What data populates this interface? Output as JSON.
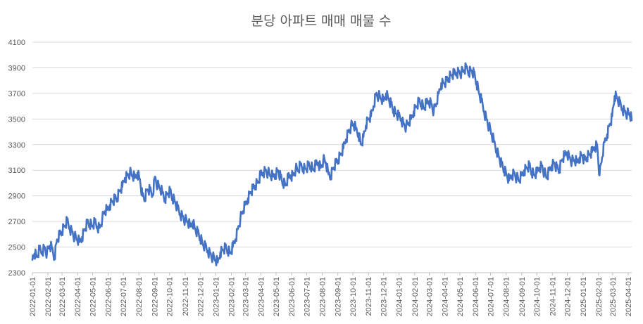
{
  "chart_data": {
    "type": "line",
    "title": "분당 아파트 매매 매물 수",
    "xlabel": "",
    "ylabel": "",
    "ylim": [
      2300,
      4100
    ],
    "yticks": [
      2300,
      2500,
      2700,
      2900,
      3100,
      3300,
      3500,
      3700,
      3900,
      4100
    ],
    "x_range": [
      "2022-01-01",
      "2025-04-08"
    ],
    "x_ticks": [
      "2022-01-01",
      "2022-02-01",
      "2022-03-01",
      "2022-04-01",
      "2022-05-01",
      "2022-06-01",
      "2022-07-01",
      "2022-08-01",
      "2022-09-01",
      "2022-10-01",
      "2022-11-01",
      "2022-12-01",
      "2023-01-01",
      "2023-02-01",
      "2023-03-01",
      "2023-04-01",
      "2023-05-01",
      "2023-06-01",
      "2023-07-01",
      "2023-08-01",
      "2023-09-01",
      "2023-10-01",
      "2023-11-01",
      "2023-12-01",
      "2024-01-01",
      "2024-02-01",
      "2024-03-01",
      "2024-04-01",
      "2024-05-01",
      "2024-06-01",
      "2024-07-01",
      "2024-08-01",
      "2024-09-01",
      "2024-10-01",
      "2024-11-01",
      "2024-12-01",
      "2025-01-01",
      "2025-02-01",
      "2025-03-01",
      "2025-04-01"
    ],
    "grid": true,
    "legend": "none",
    "series": [
      {
        "color": "#4472c4",
        "points": [
          [
            "2022-01-01",
            2400
          ],
          [
            "2022-01-05",
            2450
          ],
          [
            "2022-01-10",
            2420
          ],
          [
            "2022-01-15",
            2480
          ],
          [
            "2022-01-20",
            2460
          ],
          [
            "2022-01-25",
            2500
          ],
          [
            "2022-01-30",
            2450
          ],
          [
            "2022-02-04",
            2510
          ],
          [
            "2022-02-09",
            2490
          ],
          [
            "2022-02-14",
            2420
          ],
          [
            "2022-02-19",
            2560
          ],
          [
            "2022-02-24",
            2600
          ],
          [
            "2022-03-01",
            2620
          ],
          [
            "2022-03-06",
            2660
          ],
          [
            "2022-03-11",
            2700
          ],
          [
            "2022-03-16",
            2650
          ],
          [
            "2022-03-21",
            2620
          ],
          [
            "2022-03-26",
            2580
          ],
          [
            "2022-03-31",
            2560
          ],
          [
            "2022-04-05",
            2540
          ],
          [
            "2022-04-10",
            2580
          ],
          [
            "2022-04-15",
            2640
          ],
          [
            "2022-04-20",
            2690
          ],
          [
            "2022-04-25",
            2680
          ],
          [
            "2022-04-30",
            2660
          ],
          [
            "2022-05-05",
            2690
          ],
          [
            "2022-05-10",
            2660
          ],
          [
            "2022-05-15",
            2650
          ],
          [
            "2022-05-20",
            2720
          ],
          [
            "2022-05-25",
            2780
          ],
          [
            "2022-05-30",
            2790
          ],
          [
            "2022-06-04",
            2830
          ],
          [
            "2022-06-09",
            2860
          ],
          [
            "2022-06-14",
            2880
          ],
          [
            "2022-06-19",
            2880
          ],
          [
            "2022-06-24",
            2940
          ],
          [
            "2022-06-29",
            2970
          ],
          [
            "2022-07-04",
            3040
          ],
          [
            "2022-07-09",
            3060
          ],
          [
            "2022-07-14",
            3080
          ],
          [
            "2022-07-19",
            3060
          ],
          [
            "2022-07-24",
            3040
          ],
          [
            "2022-07-29",
            3080
          ],
          [
            "2022-08-03",
            3030
          ],
          [
            "2022-08-08",
            2900
          ],
          [
            "2022-08-13",
            2880
          ],
          [
            "2022-08-18",
            2950
          ],
          [
            "2022-08-23",
            2940
          ],
          [
            "2022-08-28",
            2900
          ],
          [
            "2022-09-02",
            3050
          ],
          [
            "2022-09-07",
            2980
          ],
          [
            "2022-09-12",
            2960
          ],
          [
            "2022-09-17",
            2920
          ],
          [
            "2022-09-22",
            2880
          ],
          [
            "2022-09-27",
            2920
          ],
          [
            "2022-10-02",
            2940
          ],
          [
            "2022-10-07",
            2880
          ],
          [
            "2022-10-12",
            2850
          ],
          [
            "2022-10-17",
            2800
          ],
          [
            "2022-10-22",
            2760
          ],
          [
            "2022-10-27",
            2740
          ],
          [
            "2022-11-01",
            2710
          ],
          [
            "2022-11-06",
            2700
          ],
          [
            "2022-11-11",
            2660
          ],
          [
            "2022-11-16",
            2700
          ],
          [
            "2022-11-21",
            2640
          ],
          [
            "2022-11-26",
            2620
          ],
          [
            "2022-12-01",
            2570
          ],
          [
            "2022-12-06",
            2520
          ],
          [
            "2022-12-11",
            2500
          ],
          [
            "2022-12-16",
            2470
          ],
          [
            "2022-12-21",
            2450
          ],
          [
            "2022-12-26",
            2420
          ],
          [
            "2022-12-31",
            2400
          ],
          [
            "2023-01-05",
            2380
          ],
          [
            "2023-01-10",
            2460
          ],
          [
            "2023-01-15",
            2480
          ],
          [
            "2023-01-20",
            2500
          ],
          [
            "2023-01-25",
            2470
          ],
          [
            "2023-01-30",
            2450
          ],
          [
            "2023-02-04",
            2500
          ],
          [
            "2023-02-09",
            2560
          ],
          [
            "2023-02-14",
            2640
          ],
          [
            "2023-02-19",
            2720
          ],
          [
            "2023-02-24",
            2780
          ],
          [
            "2023-03-01",
            2830
          ],
          [
            "2023-03-06",
            2880
          ],
          [
            "2023-03-11",
            2930
          ],
          [
            "2023-03-16",
            2960
          ],
          [
            "2023-03-21",
            2980
          ],
          [
            "2023-03-26",
            3000
          ],
          [
            "2023-03-31",
            3060
          ],
          [
            "2023-04-05",
            3080
          ],
          [
            "2023-04-10",
            3100
          ],
          [
            "2023-04-15",
            3080
          ],
          [
            "2023-04-20",
            3060
          ],
          [
            "2023-04-25",
            3050
          ],
          [
            "2023-04-30",
            3070
          ],
          [
            "2023-05-05",
            3100
          ],
          [
            "2023-05-10",
            3050
          ],
          [
            "2023-05-15",
            3000
          ],
          [
            "2023-05-20",
            2980
          ],
          [
            "2023-05-25",
            3040
          ],
          [
            "2023-05-30",
            3060
          ],
          [
            "2023-06-04",
            3060
          ],
          [
            "2023-06-09",
            3110
          ],
          [
            "2023-06-14",
            3100
          ],
          [
            "2023-06-19",
            3140
          ],
          [
            "2023-06-24",
            3120
          ],
          [
            "2023-06-29",
            3110
          ],
          [
            "2023-07-04",
            3140
          ],
          [
            "2023-07-09",
            3130
          ],
          [
            "2023-07-14",
            3100
          ],
          [
            "2023-07-19",
            3140
          ],
          [
            "2023-07-24",
            3160
          ],
          [
            "2023-07-29",
            3120
          ],
          [
            "2023-08-03",
            3180
          ],
          [
            "2023-08-08",
            3160
          ],
          [
            "2023-08-13",
            3070
          ],
          [
            "2023-08-18",
            3060
          ],
          [
            "2023-08-23",
            3120
          ],
          [
            "2023-08-28",
            3160
          ],
          [
            "2023-09-02",
            3180
          ],
          [
            "2023-09-07",
            3220
          ],
          [
            "2023-09-12",
            3270
          ],
          [
            "2023-09-17",
            3340
          ],
          [
            "2023-09-22",
            3400
          ],
          [
            "2023-09-27",
            3440
          ],
          [
            "2023-10-02",
            3460
          ],
          [
            "2023-10-07",
            3420
          ],
          [
            "2023-10-12",
            3390
          ],
          [
            "2023-10-17",
            3300
          ],
          [
            "2023-10-22",
            3360
          ],
          [
            "2023-10-27",
            3450
          ],
          [
            "2023-11-01",
            3500
          ],
          [
            "2023-11-06",
            3520
          ],
          [
            "2023-11-11",
            3600
          ],
          [
            "2023-11-16",
            3700
          ],
          [
            "2023-11-21",
            3680
          ],
          [
            "2023-11-26",
            3660
          ],
          [
            "2023-12-01",
            3640
          ],
          [
            "2023-12-06",
            3700
          ],
          [
            "2023-12-11",
            3660
          ],
          [
            "2023-12-16",
            3620
          ],
          [
            "2023-12-21",
            3560
          ],
          [
            "2023-12-26",
            3540
          ],
          [
            "2023-12-31",
            3520
          ],
          [
            "2024-01-05",
            3500
          ],
          [
            "2024-01-10",
            3460
          ],
          [
            "2024-01-15",
            3440
          ],
          [
            "2024-01-20",
            3470
          ],
          [
            "2024-01-25",
            3500
          ],
          [
            "2024-01-30",
            3560
          ],
          [
            "2024-02-04",
            3600
          ],
          [
            "2024-02-09",
            3640
          ],
          [
            "2024-02-14",
            3620
          ],
          [
            "2024-02-19",
            3580
          ],
          [
            "2024-02-24",
            3620
          ],
          [
            "2024-02-29",
            3640
          ],
          [
            "2024-03-05",
            3620
          ],
          [
            "2024-03-10",
            3560
          ],
          [
            "2024-03-15",
            3620
          ],
          [
            "2024-03-20",
            3700
          ],
          [
            "2024-03-25",
            3780
          ],
          [
            "2024-03-30",
            3780
          ],
          [
            "2024-04-04",
            3800
          ],
          [
            "2024-04-09",
            3820
          ],
          [
            "2024-04-14",
            3840
          ],
          [
            "2024-04-19",
            3850
          ],
          [
            "2024-04-24",
            3860
          ],
          [
            "2024-04-29",
            3870
          ],
          [
            "2024-05-04",
            3860
          ],
          [
            "2024-05-09",
            3880
          ],
          [
            "2024-05-14",
            3900
          ],
          [
            "2024-05-19",
            3870
          ],
          [
            "2024-05-24",
            3880
          ],
          [
            "2024-05-29",
            3860
          ],
          [
            "2024-06-03",
            3780
          ],
          [
            "2024-06-08",
            3700
          ],
          [
            "2024-06-13",
            3640
          ],
          [
            "2024-06-18",
            3560
          ],
          [
            "2024-06-23",
            3500
          ],
          [
            "2024-06-28",
            3440
          ],
          [
            "2024-07-03",
            3380
          ],
          [
            "2024-07-08",
            3320
          ],
          [
            "2024-07-13",
            3260
          ],
          [
            "2024-07-18",
            3200
          ],
          [
            "2024-07-23",
            3150
          ],
          [
            "2024-07-28",
            3100
          ],
          [
            "2024-08-02",
            3060
          ],
          [
            "2024-08-07",
            3020
          ],
          [
            "2024-08-12",
            3060
          ],
          [
            "2024-08-17",
            3080
          ],
          [
            "2024-08-22",
            3040
          ],
          [
            "2024-08-27",
            3020
          ],
          [
            "2024-09-01",
            3060
          ],
          [
            "2024-09-06",
            3100
          ],
          [
            "2024-09-11",
            3120
          ],
          [
            "2024-09-16",
            3140
          ],
          [
            "2024-09-21",
            3080
          ],
          [
            "2024-09-26",
            3060
          ],
          [
            "2024-10-01",
            3080
          ],
          [
            "2024-10-06",
            3120
          ],
          [
            "2024-10-11",
            3140
          ],
          [
            "2024-10-16",
            3080
          ],
          [
            "2024-10-21",
            3040
          ],
          [
            "2024-10-26",
            3100
          ],
          [
            "2024-10-31",
            3140
          ],
          [
            "2024-11-05",
            3160
          ],
          [
            "2024-11-10",
            3120
          ],
          [
            "2024-11-15",
            3100
          ],
          [
            "2024-11-20",
            3180
          ],
          [
            "2024-11-25",
            3210
          ],
          [
            "2024-11-30",
            3240
          ],
          [
            "2024-12-05",
            3200
          ],
          [
            "2024-12-10",
            3170
          ],
          [
            "2024-12-15",
            3180
          ],
          [
            "2024-12-20",
            3160
          ],
          [
            "2024-12-25",
            3200
          ],
          [
            "2024-12-30",
            3220
          ],
          [
            "2025-01-04",
            3180
          ],
          [
            "2025-01-09",
            3200
          ],
          [
            "2025-01-14",
            3220
          ],
          [
            "2025-01-19",
            3240
          ],
          [
            "2025-01-24",
            3280
          ],
          [
            "2025-01-29",
            3300
          ],
          [
            "2025-02-03",
            3060
          ],
          [
            "2025-02-08",
            3200
          ],
          [
            "2025-02-13",
            3320
          ],
          [
            "2025-02-18",
            3380
          ],
          [
            "2025-02-23",
            3460
          ],
          [
            "2025-02-28",
            3520
          ],
          [
            "2025-03-05",
            3680
          ],
          [
            "2025-03-10",
            3660
          ],
          [
            "2025-03-15",
            3620
          ],
          [
            "2025-03-20",
            3580
          ],
          [
            "2025-03-25",
            3560
          ],
          [
            "2025-03-30",
            3540
          ],
          [
            "2025-04-04",
            3540
          ],
          [
            "2025-04-08",
            3490
          ]
        ]
      }
    ]
  }
}
